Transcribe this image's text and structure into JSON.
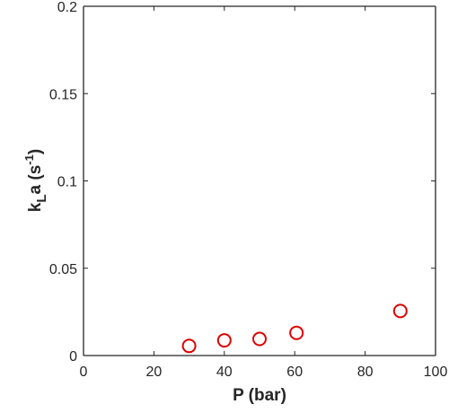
{
  "chart_data": {
    "type": "scatter",
    "title": "",
    "xlabel": "P (bar)",
    "ylabel": {
      "k": "k",
      "sub": "L",
      "mid": "a (s",
      "sup": "-1",
      "end": ")"
    },
    "xlim": [
      0,
      100
    ],
    "ylim": [
      0,
      0.2
    ],
    "xticks": [
      0,
      20,
      40,
      60,
      80,
      100
    ],
    "xtick_labels": [
      "0",
      "20",
      "40",
      "60",
      "80",
      "100"
    ],
    "yticks": [
      0,
      0.05,
      0.1,
      0.15,
      0.2
    ],
    "ytick_labels": [
      "0",
      "0.05",
      "0.1",
      "0.15",
      "0.2"
    ],
    "grid": false,
    "marker": "circle",
    "marker_color": "#e00000",
    "x": [
      30,
      40,
      50,
      60.5,
      90
    ],
    "y": [
      0.0055,
      0.0087,
      0.0095,
      0.013,
      0.0255
    ]
  }
}
